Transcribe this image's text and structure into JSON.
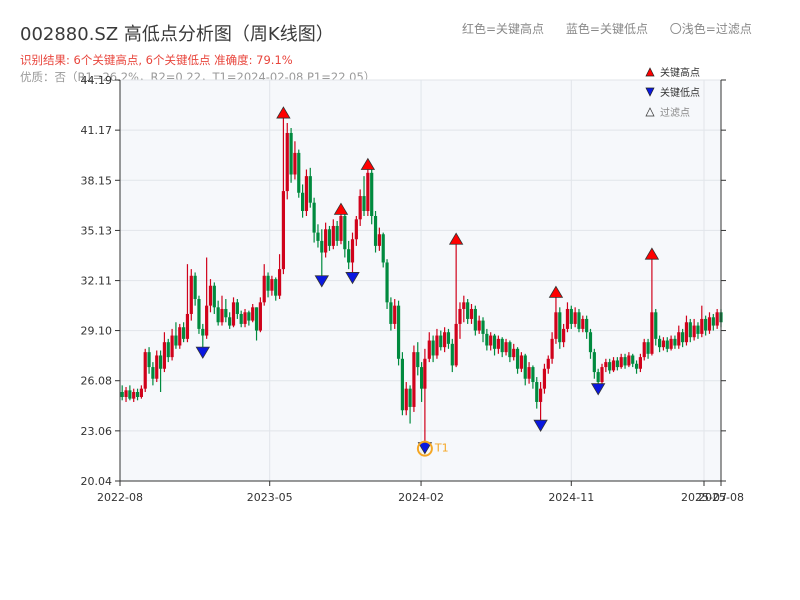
{
  "header": {
    "title": "002880.SZ 高低点分析图（周K线图）",
    "info_line1": "识别结果: 6个关键高点, 6个关键低点  准确度: 79.1%",
    "info_line2": "优质：否（R1=26.2%，R2=0.22，T1=2024-02-08 P1=22.05）"
  },
  "top_legend": {
    "red": "红色=关键高点",
    "blue": "蓝色=关键低点",
    "light": "〇浅色=过滤点"
  },
  "colors": {
    "up": "#d0021b",
    "down": "#008a3e",
    "high_marker": "#ff0000",
    "low_marker": "#0a18e0",
    "t1": "#f5a623",
    "plot_bg": "#f6f8fb",
    "grid": "#e1e5ea"
  },
  "chart_data": {
    "type": "candlestick",
    "y_ticks": [
      "20.04",
      "23.06",
      "26.08",
      "29.10",
      "32.11",
      "35.13",
      "38.15",
      "41.17",
      "44.19"
    ],
    "ylim": [
      20.04,
      44.19
    ],
    "xlim": [
      "2022-08",
      "2025-08"
    ],
    "x_ticks": [
      "2022-08",
      "2023-05",
      "2024-02",
      "2024-11",
      "2025-08",
      "2025-07"
    ],
    "legend": [
      {
        "name": "关键高点",
        "marker": "triangle-up",
        "color": "#ff0000"
      },
      {
        "name": "关键低点",
        "marker": "triangle-down",
        "color": "#0a18e0"
      },
      {
        "name": "过滤点",
        "marker": "triangle-up-hollow",
        "color": "#888888"
      }
    ],
    "key_highs": [
      {
        "date": "2023-05-26",
        "price": 42.2
      },
      {
        "date": "2023-09-08",
        "price": 36.4
      },
      {
        "date": "2023-10-27",
        "price": 39.1
      },
      {
        "date": "2024-04-05",
        "price": 34.6
      },
      {
        "date": "2024-10-04",
        "price": 31.4
      },
      {
        "date": "2025-03-28",
        "price": 33.7
      }
    ],
    "key_lows": [
      {
        "date": "2022-12-30",
        "price": 27.8
      },
      {
        "date": "2023-08-04",
        "price": 32.1
      },
      {
        "date": "2023-09-29",
        "price": 32.3
      },
      {
        "date": "2024-02-08",
        "price": 22.05
      },
      {
        "date": "2024-09-06",
        "price": 23.4
      },
      {
        "date": "2024-12-20",
        "price": 25.6
      }
    ],
    "t1": {
      "label": "T1",
      "date": "2024-02-08",
      "price": 22.05
    },
    "candles": [
      [
        "2022-08-05",
        25.4,
        25.1,
        25.8,
        24.9
      ],
      [
        "2022-08-12",
        25.1,
        25.5,
        25.7,
        24.8
      ],
      [
        "2022-08-19",
        25.5,
        25.0,
        25.8,
        24.9
      ],
      [
        "2022-08-26",
        25.0,
        25.4,
        25.6,
        24.8
      ],
      [
        "2022-09-02",
        25.4,
        25.1,
        25.6,
        24.9
      ],
      [
        "2022-09-09",
        25.1,
        25.6,
        25.8,
        25.0
      ],
      [
        "2022-09-16",
        25.6,
        27.8,
        28.0,
        25.4
      ],
      [
        "2022-09-23",
        27.8,
        26.9,
        28.1,
        26.5
      ],
      [
        "2022-09-30",
        26.9,
        26.2,
        27.2,
        25.8
      ],
      [
        "2022-10-07",
        26.2,
        27.6,
        27.9,
        26.0
      ],
      [
        "2022-10-14",
        27.6,
        26.8,
        27.9,
        25.4
      ],
      [
        "2022-10-21",
        26.8,
        28.4,
        29.0,
        26.6
      ],
      [
        "2022-10-28",
        28.4,
        27.5,
        28.6,
        27.2
      ],
      [
        "2022-11-04",
        27.5,
        28.8,
        29.2,
        27.3
      ],
      [
        "2022-11-11",
        28.8,
        28.2,
        29.6,
        28.0
      ],
      [
        "2022-11-18",
        28.2,
        29.3,
        29.5,
        28.0
      ],
      [
        "2022-11-25",
        29.3,
        28.6,
        29.6,
        28.4
      ],
      [
        "2022-12-02",
        28.6,
        30.1,
        33.1,
        28.4
      ],
      [
        "2022-12-09",
        30.1,
        32.4,
        32.8,
        29.7
      ],
      [
        "2022-12-16",
        32.4,
        31.0,
        32.6,
        30.6
      ],
      [
        "2022-12-23",
        31.0,
        29.2,
        31.2,
        28.9
      ],
      [
        "2022-12-30",
        29.2,
        28.8,
        29.5,
        27.8
      ],
      [
        "2023-01-06",
        28.8,
        30.6,
        33.5,
        28.6
      ],
      [
        "2023-01-13",
        30.6,
        31.8,
        32.2,
        30.2
      ],
      [
        "2023-01-20",
        31.8,
        30.5,
        32.0,
        30.1
      ],
      [
        "2023-01-27",
        30.5,
        29.6,
        30.9,
        29.4
      ],
      [
        "2023-02-03",
        29.6,
        30.4,
        31.2,
        29.4
      ],
      [
        "2023-02-10",
        30.4,
        29.9,
        31.0,
        29.6
      ],
      [
        "2023-02-17",
        29.9,
        29.4,
        30.2,
        29.2
      ],
      [
        "2023-02-24",
        29.4,
        30.8,
        31.1,
        29.3
      ],
      [
        "2023-03-03",
        30.8,
        30.1,
        31.0,
        29.8
      ],
      [
        "2023-03-10",
        30.1,
        29.5,
        30.3,
        29.3
      ],
      [
        "2023-03-17",
        29.5,
        30.2,
        30.4,
        29.3
      ],
      [
        "2023-03-24",
        30.2,
        29.7,
        30.3,
        29.4
      ],
      [
        "2023-03-31",
        29.7,
        30.5,
        30.7,
        29.6
      ],
      [
        "2023-04-07",
        30.5,
        29.1,
        30.5,
        28.5
      ],
      [
        "2023-04-14",
        29.1,
        30.8,
        31.1,
        29.0
      ],
      [
        "2023-04-21",
        30.8,
        32.4,
        33.1,
        30.6
      ],
      [
        "2023-04-28",
        32.4,
        31.5,
        32.6,
        31.1
      ],
      [
        "2023-05-05",
        31.5,
        32.2,
        32.4,
        31.2
      ],
      [
        "2023-05-12",
        32.2,
        31.2,
        32.3,
        30.9
      ],
      [
        "2023-05-19",
        31.2,
        32.8,
        33.7,
        31.0
      ],
      [
        "2023-05-26",
        32.8,
        37.5,
        42.2,
        32.5
      ],
      [
        "2023-06-02",
        37.5,
        41.0,
        41.6,
        37.0
      ],
      [
        "2023-06-09",
        41.0,
        38.5,
        41.3,
        38.0
      ],
      [
        "2023-06-16",
        38.5,
        39.8,
        40.5,
        38.2
      ],
      [
        "2023-06-23",
        39.8,
        37.4,
        40.0,
        37.1
      ],
      [
        "2023-06-30",
        37.4,
        36.3,
        37.9,
        35.9
      ],
      [
        "2023-07-07",
        36.3,
        38.4,
        38.8,
        36.0
      ],
      [
        "2023-07-14",
        38.4,
        36.8,
        38.9,
        36.5
      ],
      [
        "2023-07-21",
        36.8,
        35.0,
        37.1,
        34.4
      ],
      [
        "2023-07-28",
        35.0,
        34.5,
        35.5,
        34.1
      ],
      [
        "2023-08-04",
        34.5,
        33.8,
        35.2,
        32.1
      ],
      [
        "2023-08-11",
        33.8,
        35.2,
        35.6,
        33.5
      ],
      [
        "2023-08-18",
        35.2,
        34.2,
        35.4,
        33.9
      ],
      [
        "2023-08-25",
        34.2,
        35.4,
        35.8,
        34.0
      ],
      [
        "2023-09-01",
        35.4,
        34.5,
        35.7,
        34.2
      ],
      [
        "2023-09-08",
        34.5,
        36.0,
        36.4,
        34.3
      ],
      [
        "2023-09-15",
        36.0,
        34.0,
        36.2,
        33.5
      ],
      [
        "2023-09-22",
        34.0,
        33.2,
        34.5,
        32.8
      ],
      [
        "2023-09-29",
        33.2,
        34.6,
        35.0,
        32.3
      ],
      [
        "2023-10-06",
        34.6,
        35.8,
        36.0,
        34.2
      ],
      [
        "2023-10-13",
        35.8,
        37.2,
        37.6,
        35.4
      ],
      [
        "2023-10-20",
        37.2,
        36.3,
        38.4,
        36.0
      ],
      [
        "2023-10-27",
        36.3,
        38.6,
        39.1,
        36.0
      ],
      [
        "2023-11-03",
        38.6,
        36.0,
        38.8,
        35.5
      ],
      [
        "2023-11-10",
        36.0,
        34.2,
        36.3,
        33.8
      ],
      [
        "2023-11-17",
        34.2,
        34.9,
        35.3,
        33.9
      ],
      [
        "2023-11-24",
        34.9,
        33.2,
        35.0,
        32.9
      ],
      [
        "2023-12-01",
        33.2,
        30.8,
        33.4,
        30.4
      ],
      [
        "2023-12-08",
        30.8,
        29.5,
        31.1,
        29.1
      ],
      [
        "2023-12-15",
        29.5,
        30.6,
        31.0,
        29.2
      ],
      [
        "2023-12-22",
        30.6,
        27.4,
        30.9,
        27.0
      ],
      [
        "2023-12-29",
        27.4,
        24.3,
        27.8,
        24.0
      ],
      [
        "2024-01-05",
        24.3,
        25.6,
        26.0,
        24.0
      ],
      [
        "2024-01-12",
        25.6,
        24.5,
        25.8,
        23.5
      ],
      [
        "2024-01-19",
        24.5,
        27.8,
        28.2,
        24.2
      ],
      [
        "2024-01-26",
        27.8,
        26.9,
        28.4,
        26.4
      ],
      [
        "2024-02-02",
        26.9,
        25.6,
        27.2,
        24.8
      ],
      [
        "2024-02-08",
        25.6,
        27.4,
        28.0,
        22.05
      ],
      [
        "2024-02-16",
        27.4,
        28.5,
        29.0,
        27.2
      ],
      [
        "2024-02-23",
        28.5,
        27.6,
        28.8,
        27.2
      ],
      [
        "2024-03-01",
        27.6,
        28.8,
        29.2,
        27.4
      ],
      [
        "2024-03-08",
        28.8,
        28.1,
        29.1,
        27.9
      ],
      [
        "2024-03-15",
        28.1,
        29.0,
        29.3,
        27.8
      ],
      [
        "2024-03-22",
        29.0,
        28.3,
        29.2,
        28.0
      ],
      [
        "2024-03-29",
        28.3,
        27.0,
        28.6,
        26.6
      ],
      [
        "2024-04-05",
        27.0,
        29.5,
        34.6,
        26.9
      ],
      [
        "2024-04-12",
        29.5,
        30.4,
        30.8,
        28.6
      ],
      [
        "2024-04-19",
        30.4,
        30.8,
        31.2,
        29.6
      ],
      [
        "2024-04-26",
        30.8,
        29.8,
        31.0,
        29.5
      ],
      [
        "2024-05-03",
        29.8,
        30.4,
        30.7,
        29.5
      ],
      [
        "2024-05-10",
        30.4,
        29.1,
        30.6,
        28.8
      ],
      [
        "2024-05-17",
        29.1,
        29.7,
        30.0,
        28.9
      ],
      [
        "2024-05-24",
        29.7,
        28.9,
        29.9,
        28.4
      ],
      [
        "2024-05-31",
        28.9,
        28.2,
        29.2,
        27.9
      ],
      [
        "2024-06-07",
        28.2,
        28.8,
        29.0,
        27.9
      ],
      [
        "2024-06-14",
        28.8,
        28.0,
        28.9,
        27.6
      ],
      [
        "2024-06-21",
        28.0,
        28.6,
        28.8,
        27.7
      ],
      [
        "2024-06-28",
        28.6,
        27.8,
        28.7,
        27.5
      ],
      [
        "2024-07-05",
        27.8,
        28.4,
        28.6,
        27.6
      ],
      [
        "2024-07-12",
        28.4,
        27.5,
        28.5,
        27.2
      ],
      [
        "2024-07-19",
        27.5,
        28.0,
        28.3,
        27.3
      ],
      [
        "2024-07-26",
        28.0,
        26.8,
        28.1,
        26.5
      ],
      [
        "2024-08-02",
        26.8,
        27.6,
        27.8,
        26.6
      ],
      [
        "2024-08-09",
        27.6,
        26.2,
        27.7,
        25.8
      ],
      [
        "2024-08-16",
        26.2,
        26.9,
        27.2,
        25.9
      ],
      [
        "2024-08-23",
        26.9,
        26.0,
        27.0,
        25.6
      ],
      [
        "2024-08-30",
        26.0,
        24.8,
        26.3,
        24.4
      ],
      [
        "2024-09-06",
        24.8,
        25.6,
        26.0,
        23.4
      ],
      [
        "2024-09-13",
        25.6,
        26.8,
        27.1,
        25.3
      ],
      [
        "2024-09-20",
        26.8,
        27.4,
        27.6,
        26.5
      ],
      [
        "2024-09-27",
        27.4,
        28.6,
        29.0,
        27.1
      ],
      [
        "2024-10-04",
        28.6,
        30.2,
        31.4,
        28.3
      ],
      [
        "2024-10-11",
        30.2,
        28.4,
        30.5,
        28.0
      ],
      [
        "2024-10-18",
        28.4,
        29.2,
        29.5,
        28.1
      ],
      [
        "2024-10-25",
        29.2,
        30.4,
        30.8,
        29.0
      ],
      [
        "2024-11-01",
        30.4,
        29.5,
        30.6,
        29.2
      ],
      [
        "2024-11-08",
        29.5,
        30.2,
        30.5,
        29.3
      ],
      [
        "2024-11-15",
        30.2,
        29.2,
        30.4,
        29.0
      ],
      [
        "2024-11-22",
        29.2,
        29.8,
        30.0,
        29.0
      ],
      [
        "2024-11-29",
        29.8,
        29.0,
        30.0,
        28.6
      ],
      [
        "2024-12-06",
        29.0,
        27.8,
        29.2,
        27.4
      ],
      [
        "2024-12-13",
        27.8,
        26.6,
        28.0,
        26.2
      ],
      [
        "2024-12-20",
        26.6,
        26.0,
        26.8,
        25.6
      ],
      [
        "2024-12-27",
        26.0,
        26.9,
        27.1,
        25.8
      ],
      [
        "2025-01-03",
        26.9,
        27.2,
        27.4,
        26.6
      ],
      [
        "2025-01-10",
        27.2,
        26.7,
        27.4,
        26.5
      ],
      [
        "2025-01-17",
        26.7,
        27.3,
        27.5,
        26.6
      ],
      [
        "2025-01-24",
        27.3,
        26.9,
        27.5,
        26.7
      ],
      [
        "2025-01-31",
        26.9,
        27.5,
        27.7,
        26.8
      ],
      [
        "2025-02-07",
        27.5,
        27.0,
        27.7,
        26.8
      ],
      [
        "2025-02-14",
        27.0,
        27.6,
        27.8,
        26.9
      ],
      [
        "2025-02-21",
        27.6,
        27.1,
        27.7,
        26.9
      ],
      [
        "2025-02-28",
        27.1,
        26.8,
        27.3,
        26.5
      ],
      [
        "2025-03-07",
        26.8,
        27.5,
        27.7,
        26.6
      ],
      [
        "2025-03-14",
        27.5,
        28.4,
        28.6,
        27.3
      ],
      [
        "2025-03-21",
        28.4,
        27.7,
        28.6,
        27.4
      ],
      [
        "2025-03-28",
        27.7,
        30.2,
        33.7,
        27.6
      ],
      [
        "2025-04-04",
        30.2,
        28.6,
        30.4,
        28.2
      ],
      [
        "2025-04-11",
        28.6,
        28.1,
        28.8,
        27.8
      ],
      [
        "2025-04-18",
        28.1,
        28.5,
        28.7,
        27.9
      ],
      [
        "2025-04-25",
        28.5,
        28.0,
        28.7,
        27.8
      ],
      [
        "2025-05-02",
        28.0,
        28.6,
        28.8,
        27.9
      ],
      [
        "2025-05-09",
        28.6,
        28.2,
        28.8,
        28.0
      ],
      [
        "2025-05-16",
        28.2,
        29.0,
        29.4,
        28.0
      ],
      [
        "2025-05-23",
        29.0,
        28.4,
        29.2,
        28.1
      ],
      [
        "2025-05-30",
        28.4,
        29.6,
        30.0,
        28.2
      ],
      [
        "2025-06-06",
        29.6,
        28.7,
        29.8,
        28.4
      ],
      [
        "2025-06-13",
        28.7,
        29.4,
        29.8,
        28.5
      ],
      [
        "2025-06-20",
        29.4,
        28.9,
        29.6,
        28.6
      ],
      [
        "2025-06-27",
        28.9,
        29.8,
        30.6,
        28.7
      ],
      [
        "2025-07-04",
        29.8,
        29.1,
        30.0,
        28.8
      ],
      [
        "2025-07-11",
        29.1,
        29.9,
        30.2,
        28.9
      ],
      [
        "2025-07-18",
        29.9,
        29.4,
        30.1,
        29.1
      ],
      [
        "2025-07-25",
        29.4,
        30.2,
        30.4,
        29.2
      ],
      [
        "2025-08-01",
        30.2,
        29.6,
        30.4,
        29.3
      ]
    ]
  }
}
